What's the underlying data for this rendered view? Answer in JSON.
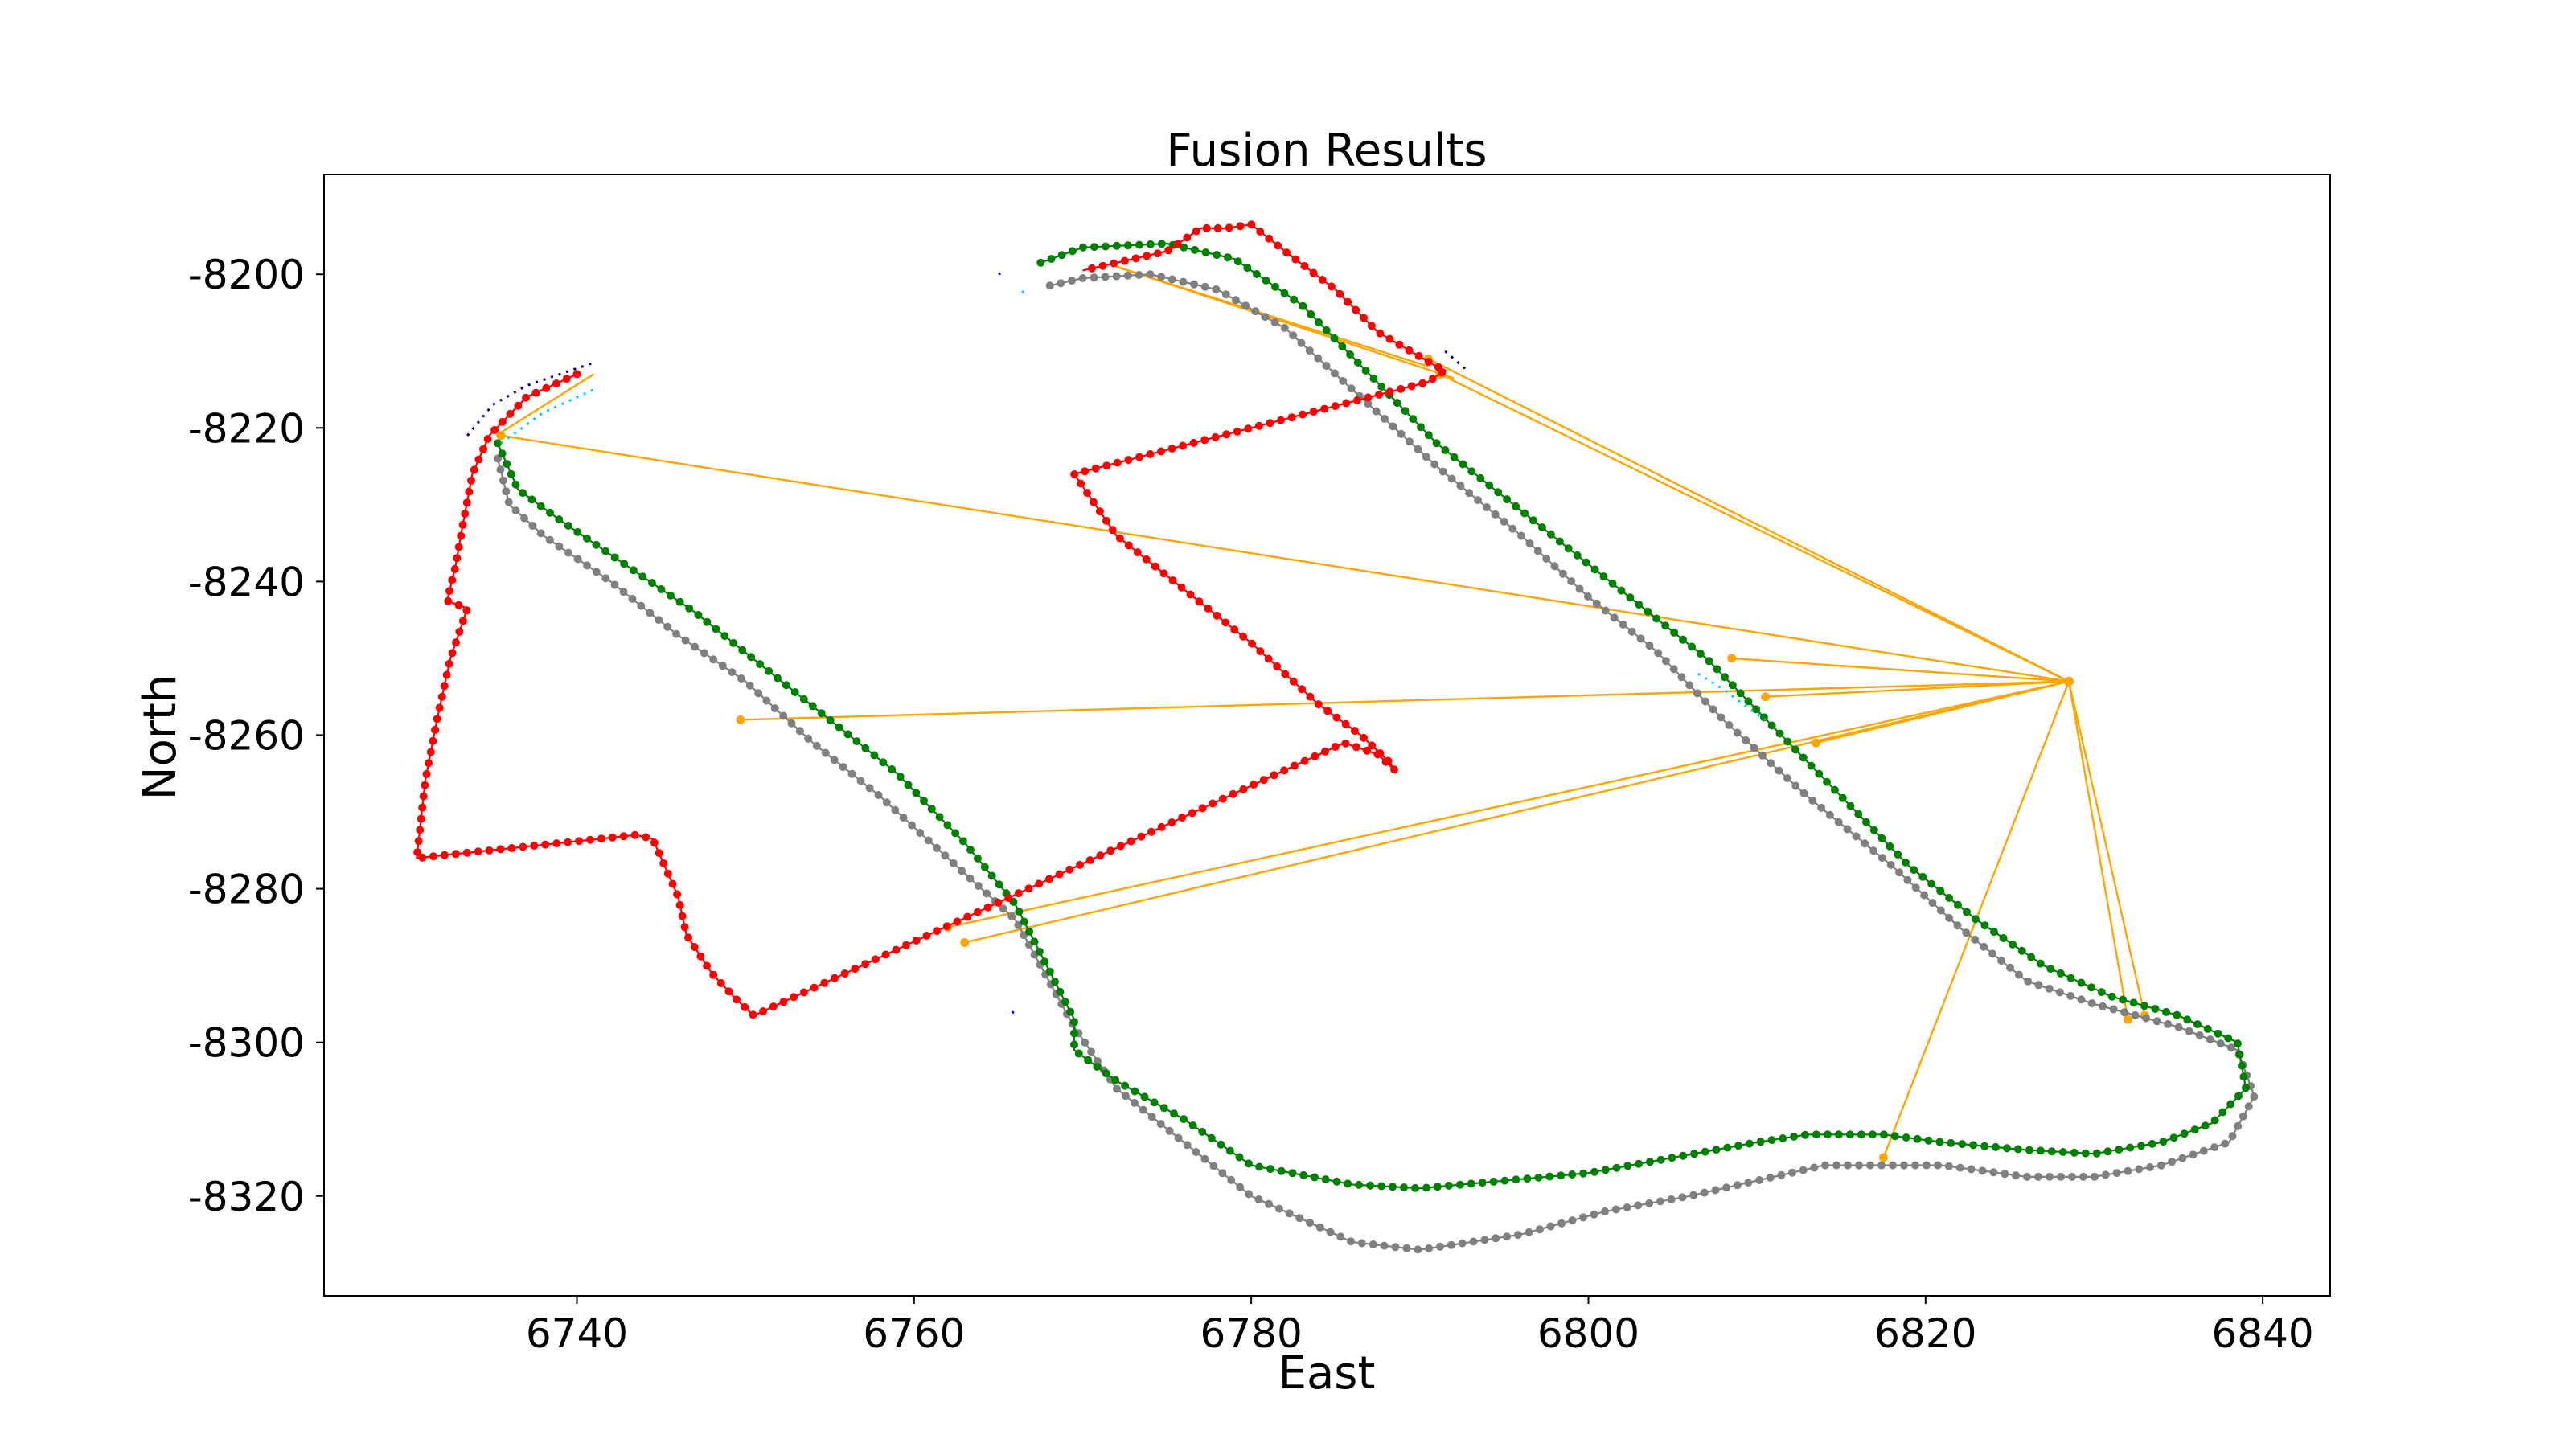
{
  "chart_data": {
    "type": "line",
    "title": "Fusion Results",
    "xlabel": "East",
    "ylabel": "North",
    "xlim": [
      6725,
      6844
    ],
    "ylim": [
      -8333,
      -8187
    ],
    "xticks": [
      6740,
      6760,
      6780,
      6800,
      6820,
      6840
    ],
    "yticks": [
      -8200,
      -8220,
      -8240,
      -8260,
      -8280,
      -8300,
      -8320
    ],
    "grid": false,
    "legend": "none",
    "series": [
      {
        "color": "#808080",
        "style": "line-markers",
        "points": [
          [
            6735.3,
            -8224
          ],
          [
            6736,
            -8230
          ],
          [
            6738,
            -8234
          ],
          [
            6742,
            -8240
          ],
          [
            6746,
            -8247
          ],
          [
            6750,
            -8253
          ],
          [
            6754,
            -8261
          ],
          [
            6758,
            -8268
          ],
          [
            6762,
            -8276
          ],
          [
            6766,
            -8284
          ],
          [
            6769.5,
            -8298
          ],
          [
            6772,
            -8306
          ],
          [
            6776,
            -8313
          ],
          [
            6780,
            -8320
          ],
          [
            6786,
            -8326
          ],
          [
            6790,
            -8327
          ],
          [
            6796,
            -8325
          ],
          [
            6801,
            -8322
          ],
          [
            6806,
            -8320
          ],
          [
            6810,
            -8318
          ],
          [
            6814,
            -8316
          ],
          [
            6817.5,
            -8316
          ],
          [
            6821,
            -8316
          ],
          [
            6826,
            -8317.5
          ],
          [
            6830,
            -8317.5
          ],
          [
            6834,
            -8316
          ],
          [
            6838,
            -8313
          ],
          [
            6839.5,
            -8307
          ],
          [
            6838.5,
            -8301
          ],
          [
            6835,
            -8298
          ],
          [
            6830,
            -8295
          ],
          [
            6826,
            -8292
          ],
          [
            6822,
            -8285
          ],
          [
            6818,
            -8277
          ],
          [
            6813,
            -8268
          ],
          [
            6808,
            -8258
          ],
          [
            6804,
            -8249
          ],
          [
            6800,
            -8242
          ],
          [
            6796,
            -8234
          ],
          [
            6791,
            -8225
          ],
          [
            6786,
            -8215
          ],
          [
            6782,
            -8207
          ],
          [
            6778,
            -8202
          ],
          [
            6774,
            -8200
          ],
          [
            6770,
            -8200.5
          ],
          [
            6768,
            -8201.5
          ]
        ]
      },
      {
        "color": "#008000",
        "style": "line-markers",
        "points": [
          [
            6735.3,
            -8222
          ],
          [
            6736.5,
            -8228
          ],
          [
            6739,
            -8232
          ],
          [
            6743,
            -8238
          ],
          [
            6747,
            -8244
          ],
          [
            6751,
            -8251
          ],
          [
            6755,
            -8258
          ],
          [
            6759,
            -8265
          ],
          [
            6763,
            -8274
          ],
          [
            6766,
            -8282
          ],
          [
            6769.5,
            -8297
          ],
          [
            6769.5,
            -8301
          ],
          [
            6772,
            -8305
          ],
          [
            6776,
            -8310
          ],
          [
            6780,
            -8316
          ],
          [
            6786,
            -8318.5
          ],
          [
            6790,
            -8319
          ],
          [
            6795,
            -8318
          ],
          [
            6800,
            -8317
          ],
          [
            6805,
            -8315
          ],
          [
            6810,
            -8313
          ],
          [
            6813,
            -8312
          ],
          [
            6817.5,
            -8312
          ],
          [
            6821,
            -8313
          ],
          [
            6826,
            -8314
          ],
          [
            6830,
            -8314.5
          ],
          [
            6834,
            -8313
          ],
          [
            6837,
            -8310.5
          ],
          [
            6839,
            -8306
          ],
          [
            6838.5,
            -8300
          ],
          [
            6835,
            -8296.5
          ],
          [
            6831,
            -8294
          ],
          [
            6827,
            -8290
          ],
          [
            6823,
            -8284
          ],
          [
            6819,
            -8277
          ],
          [
            6815,
            -8268
          ],
          [
            6811,
            -8259
          ],
          [
            6807,
            -8250
          ],
          [
            6803,
            -8243
          ],
          [
            6799,
            -8236
          ],
          [
            6795,
            -8229
          ],
          [
            6791,
            -8222
          ],
          [
            6787,
            -8213
          ],
          [
            6783,
            -8204
          ],
          [
            6779,
            -8198
          ],
          [
            6775,
            -8196
          ],
          [
            6770,
            -8196.5
          ],
          [
            6767.5,
            -8198.5
          ]
        ]
      },
      {
        "color": "#ff0000",
        "style": "line-markers",
        "points": [
          [
            6740,
            -8213
          ],
          [
            6737,
            -8216
          ],
          [
            6734.8,
            -8221
          ],
          [
            6733.8,
            -8226
          ],
          [
            6733.2,
            -8233
          ],
          [
            6732.8,
            -8238
          ],
          [
            6732.3,
            -8242.5
          ],
          [
            6733.5,
            -8243.5
          ],
          [
            6732.5,
            -8250
          ],
          [
            6731.7,
            -8258
          ],
          [
            6731,
            -8266
          ],
          [
            6730.5,
            -8276
          ],
          [
            6743.5,
            -8273
          ],
          [
            6744.5,
            -8273.5
          ],
          [
            6746,
            -8281
          ],
          [
            6746.5,
            -8286
          ],
          [
            6748,
            -8291
          ],
          [
            6749.5,
            -8294.5
          ],
          [
            6750.5,
            -8296.5
          ],
          [
            6785.5,
            -8261
          ],
          [
            6787.5,
            -8262.5
          ],
          [
            6788.5,
            -8264.5
          ],
          [
            6788.2,
            -8263.5
          ],
          [
            6786.5,
            -8260
          ],
          [
            6784,
            -8256
          ],
          [
            6780,
            -8248
          ],
          [
            6776,
            -8241
          ],
          [
            6772,
            -8234
          ],
          [
            6769.5,
            -8226
          ],
          [
            6790.5,
            -8214
          ],
          [
            6791.5,
            -8212.5
          ],
          [
            6791,
            -8212
          ],
          [
            6787.5,
            -8207.5
          ],
          [
            6785,
            -8202
          ],
          [
            6782,
            -8197
          ],
          [
            6780,
            -8193.5
          ],
          [
            6778.5,
            -8194
          ],
          [
            6777,
            -8194
          ],
          [
            6775,
            -8197
          ],
          [
            6770,
            -8199.5
          ]
        ]
      },
      {
        "color": "#00008b",
        "style": "dashed",
        "points": [
          [
            6733.5,
            -8221
          ],
          [
            6735,
            -8217
          ],
          [
            6737,
            -8214.5
          ],
          [
            6739,
            -8213
          ],
          [
            6741,
            -8211.5
          ]
        ]
      },
      {
        "color": "#0000ff",
        "style": "dashed",
        "points": [
          [
            6765,
            -8200
          ],
          [
            6765.2,
            -8199.8
          ]
        ]
      },
      {
        "color": "#0000ff",
        "style": "dashed",
        "points": [
          [
            6765.8,
            -8296
          ],
          [
            6766,
            -8296.3
          ]
        ]
      },
      {
        "color": "#00008b",
        "style": "dashed",
        "points": [
          [
            6791.5,
            -8210
          ],
          [
            6792.8,
            -8212.5
          ]
        ]
      },
      {
        "color": "#00cfff",
        "style": "dashed",
        "points": [
          [
            6735.5,
            -8222
          ],
          [
            6738,
            -8218
          ],
          [
            6741,
            -8215
          ]
        ]
      },
      {
        "color": "#00cfff",
        "style": "dashed",
        "points": [
          [
            6766.4,
            -8202.2
          ],
          [
            6766.7,
            -8202.7
          ]
        ]
      },
      {
        "color": "#00cfff",
        "style": "dashed",
        "points": [
          [
            6806.5,
            -8252
          ],
          [
            6808,
            -8254
          ],
          [
            6809.5,
            -8256.5
          ],
          [
            6810.5,
            -8258
          ]
        ]
      }
    ],
    "associations": {
      "color": "#ffa500",
      "center": [
        6828.5,
        -8253
      ],
      "endpoints": [
        [
          6735.5,
          -8221
        ],
        [
          6749.7,
          -8258
        ],
        [
          6762,
          -8285
        ],
        [
          6763,
          -8287
        ],
        [
          6790.5,
          -8211
        ],
        [
          6791.2,
          -8213
        ],
        [
          6808.5,
          -8250
        ],
        [
          6810.5,
          -8255
        ],
        [
          6813.5,
          -8261
        ],
        [
          6817.5,
          -8315
        ],
        [
          6832,
          -8297
        ],
        [
          6833,
          -8296.5
        ]
      ],
      "extra_links": [
        [
          [
            6772,
            -8199
          ],
          [
            6790.5,
            -8212
          ]
        ],
        [
          [
            6772,
            -8199
          ],
          [
            6792,
            -8213.5
          ]
        ],
        [
          [
            6735.2,
            -8221
          ],
          [
            6741,
            -8213
          ]
        ]
      ]
    }
  }
}
